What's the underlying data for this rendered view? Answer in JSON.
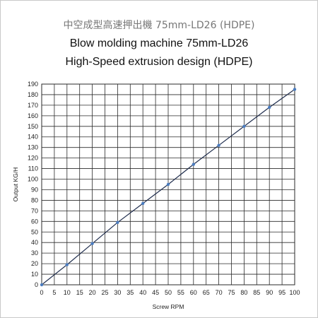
{
  "header": {
    "title_zh": "中空成型高速押出機 75mm-LD26  (HDPE)",
    "title_en": "Blow molding machine 75mm-LD26",
    "subtitle": "High-Speed extrusion design (HDPE)"
  },
  "colors": {
    "line": "#1f2d4d",
    "marker": "#4a7cc0",
    "grid": "#2a2a2a",
    "axis_text": "#222222"
  },
  "chart_data": {
    "type": "line",
    "xlabel": "Screw RPM",
    "ylabel": "Output KG/H",
    "xlim": [
      0,
      100
    ],
    "ylim": [
      0,
      190
    ],
    "x_ticks": [
      0,
      5,
      10,
      15,
      20,
      25,
      30,
      35,
      40,
      45,
      50,
      55,
      60,
      65,
      70,
      75,
      80,
      85,
      90,
      95,
      100
    ],
    "y_ticks": [
      0,
      10,
      20,
      30,
      40,
      50,
      60,
      70,
      80,
      90,
      100,
      110,
      120,
      130,
      140,
      150,
      160,
      170,
      180,
      190
    ],
    "grid": true,
    "series": [
      {
        "x": [
          0,
          10,
          20,
          30,
          40,
          50,
          60,
          70,
          80,
          90,
          100
        ],
        "y": [
          0,
          19,
          39,
          59,
          77,
          95,
          114,
          132,
          150,
          168,
          185
        ]
      }
    ]
  }
}
